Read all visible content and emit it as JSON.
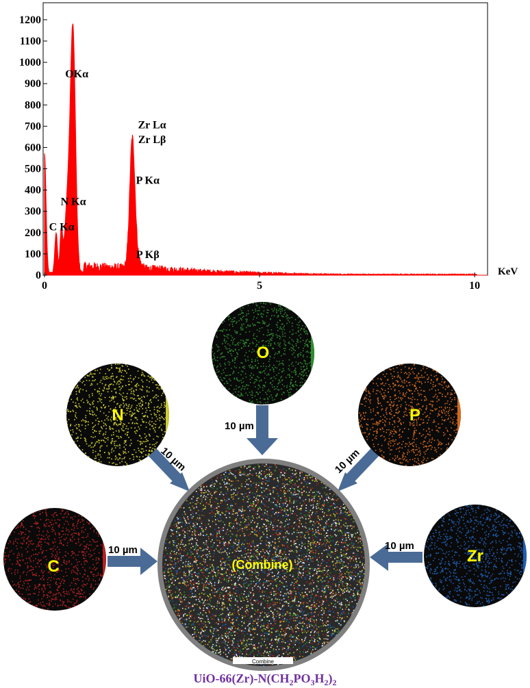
{
  "chart_data": {
    "type": "area",
    "xlabel": "KeV",
    "xlim": [
      0,
      10.3
    ],
    "ylim": [
      0,
      1280
    ],
    "x_ticks": [
      0,
      5,
      10
    ],
    "y_ticks": [
      0,
      100,
      200,
      300,
      400,
      500,
      600,
      700,
      800,
      900,
      1000,
      1100,
      1200
    ],
    "grid": false,
    "series_color": "#ff0000",
    "peaks": [
      {
        "x": 0.0,
        "y": 560
      },
      {
        "x": 0.27,
        "y": 200
      },
      {
        "x": 0.39,
        "y": 210
      },
      {
        "x": 0.53,
        "y": 320
      },
      {
        "x": 0.66,
        "y": 1150
      },
      {
        "x": 2.04,
        "y": 600
      },
      {
        "x": 2.14,
        "y": 60
      }
    ],
    "annotations": [
      {
        "label": "OKα",
        "x": 0.75,
        "y": 930
      },
      {
        "label": "Zr Lα",
        "x": 2.5,
        "y": 690
      },
      {
        "label": "Zr Lβ",
        "x": 2.5,
        "y": 620
      },
      {
        "label": "P Kα",
        "x": 2.4,
        "y": 430
      },
      {
        "label": "N Kα",
        "x": 0.67,
        "y": 330
      },
      {
        "label": "C Kα",
        "x": 0.4,
        "y": 210
      },
      {
        "label": "P Kβ",
        "x": 2.4,
        "y": 80
      }
    ]
  },
  "maps": {
    "elements": [
      {
        "id": "O",
        "label": "O",
        "scale": "10 µm",
        "color": "#2e8b2e"
      },
      {
        "id": "N",
        "label": "N",
        "scale": "10 µm",
        "color": "#cccc33"
      },
      {
        "id": "P",
        "label": "P",
        "scale": "10 µm",
        "color": "#d2691e"
      },
      {
        "id": "C",
        "label": "C",
        "scale": "10 µm",
        "color": "#b22222"
      },
      {
        "id": "Zr",
        "label": "Zr",
        "scale": "10 µm",
        "color": "#1e5fb4"
      }
    ],
    "combined_label": "(Combine)",
    "combined_caption": "Combine",
    "label_color": "#ffff00",
    "arrow_color": "#4a6b96",
    "ring_color": "#7f7f7f"
  },
  "compound": {
    "prefix": "UiO-66(Zr)-N(CH",
    "sub1": "2",
    "mid1": "PO",
    "sub2": "3",
    "mid2": "H",
    "sub3": "2",
    "mid3": ")",
    "sub4": "2",
    "color": "#7030a0"
  }
}
